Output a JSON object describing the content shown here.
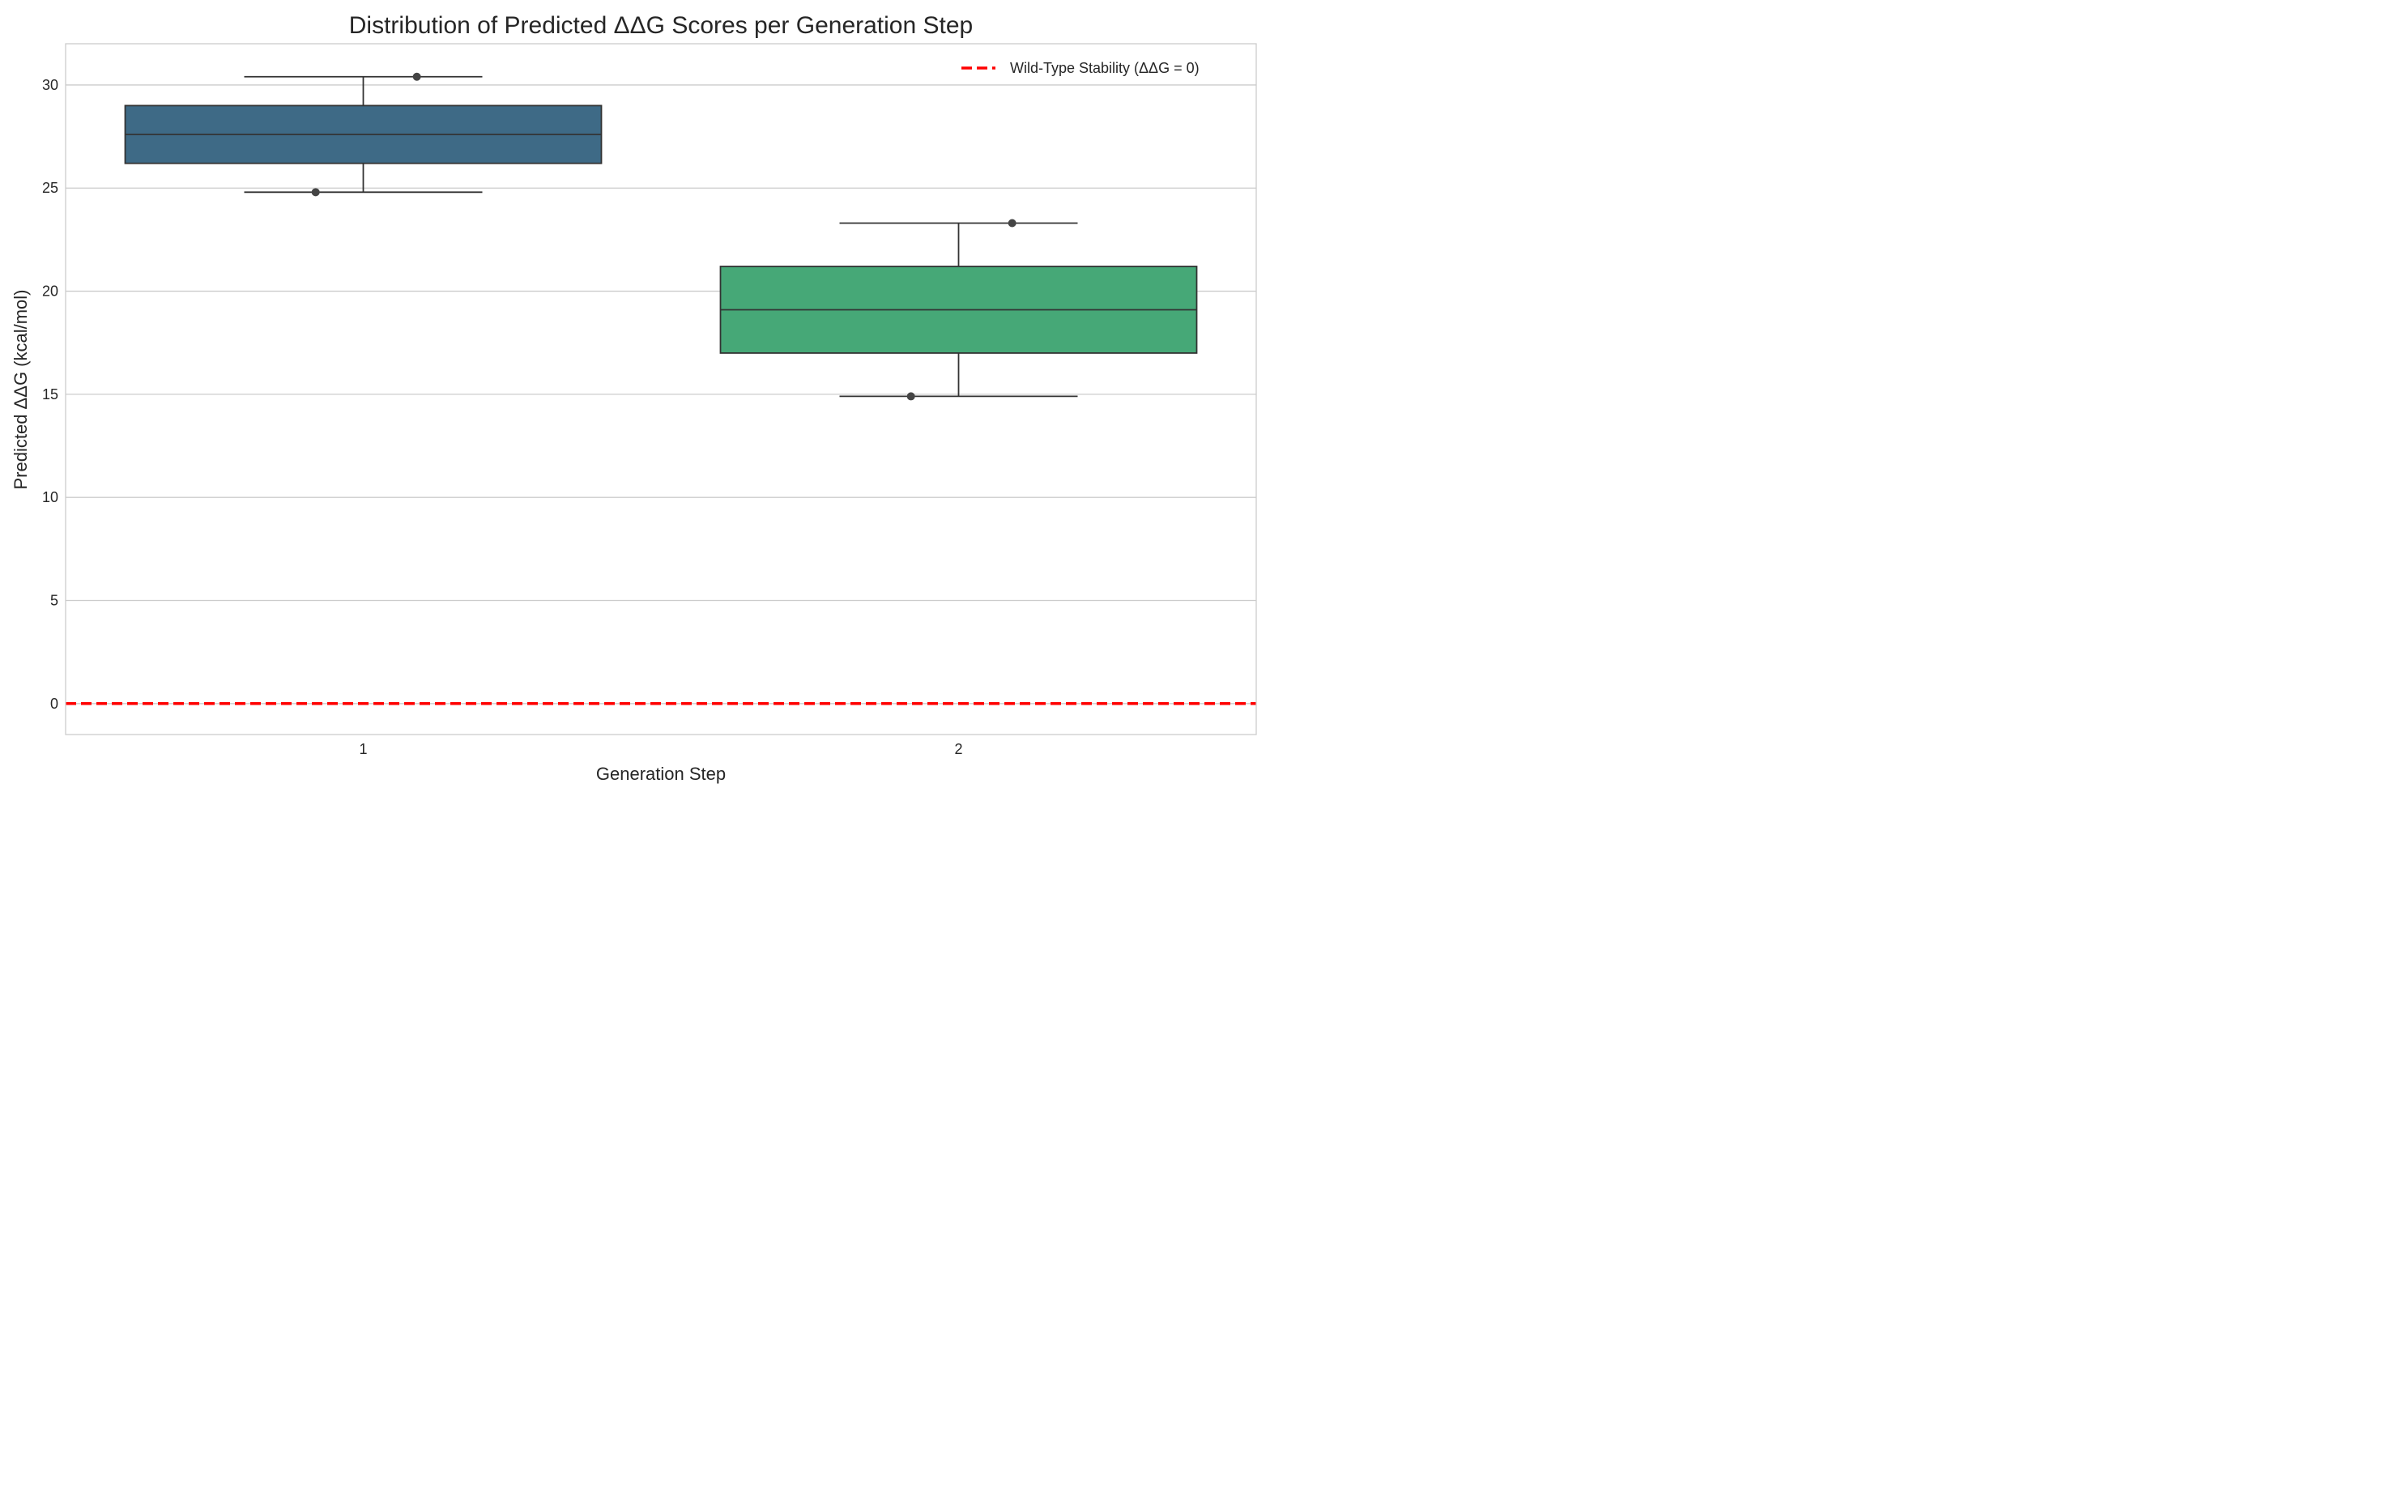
{
  "chart_data": {
    "type": "box",
    "title": "Distribution of Predicted ΔΔG Scores per Generation Step",
    "xlabel": "Generation Step",
    "ylabel": "Predicted ΔΔG (kcal/mol)",
    "categories": [
      "1",
      "2"
    ],
    "ylim": [
      -1.5,
      32
    ],
    "yticks": [
      0,
      5,
      10,
      15,
      20,
      25,
      30
    ],
    "grid": true,
    "boxes": [
      {
        "category": "1",
        "whisker_low": 24.8,
        "q1": 26.2,
        "median": 27.6,
        "q3": 29.0,
        "whisker_high": 30.4,
        "color": "#3e6a86",
        "points": [
          30.4,
          24.8
        ]
      },
      {
        "category": "2",
        "whisker_low": 14.9,
        "q1": 17.0,
        "median": 19.1,
        "q3": 21.2,
        "whisker_high": 23.3,
        "color": "#46a877",
        "points": [
          23.3,
          14.9
        ]
      }
    ],
    "reference_line": {
      "y": 0,
      "label": "Wild-Type Stability (ΔΔG = 0)",
      "color": "#ff0000",
      "style": "dashed"
    },
    "legend": {
      "location": "upper-right",
      "entries": [
        "Wild-Type Stability (ΔΔG = 0)"
      ]
    }
  }
}
